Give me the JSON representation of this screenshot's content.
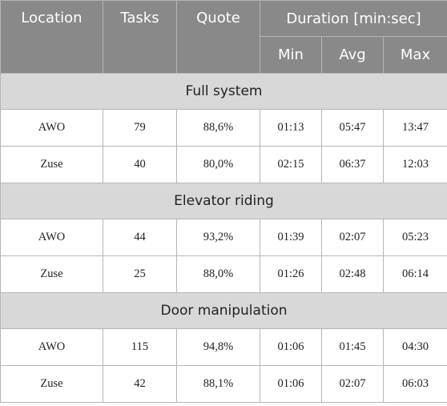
{
  "header": {
    "location": "Location",
    "tasks": "Tasks",
    "quote": "Quote",
    "duration": "Duration [min:sec]",
    "min": "Min",
    "avg": "Avg",
    "max": "Max"
  },
  "sections": [
    {
      "title": "Full system",
      "rows": [
        {
          "location": "AWO",
          "tasks": "79",
          "quote": "88,6%",
          "min": "01:13",
          "avg": "05:47",
          "max": "13:47"
        },
        {
          "location": "Zuse",
          "tasks": "40",
          "quote": "80,0%",
          "min": "02:15",
          "avg": "06:37",
          "max": "12:03"
        }
      ]
    },
    {
      "title": "Elevator riding",
      "rows": [
        {
          "location": "AWO",
          "tasks": "44",
          "quote": "93,2%",
          "min": "01:39",
          "avg": "02:07",
          "max": "05:23"
        },
        {
          "location": "Zuse",
          "tasks": "25",
          "quote": "88,0%",
          "min": "01:26",
          "avg": "02:48",
          "max": "06:14"
        }
      ]
    },
    {
      "title": "Door manipulation",
      "rows": [
        {
          "location": "AWO",
          "tasks": "115",
          "quote": "94,8%",
          "min": "01:06",
          "avg": "01:45",
          "max": "04:30"
        },
        {
          "location": "Zuse",
          "tasks": "42",
          "quote": "88,1%",
          "min": "01:06",
          "avg": "02:07",
          "max": "06:03"
        }
      ]
    }
  ]
}
